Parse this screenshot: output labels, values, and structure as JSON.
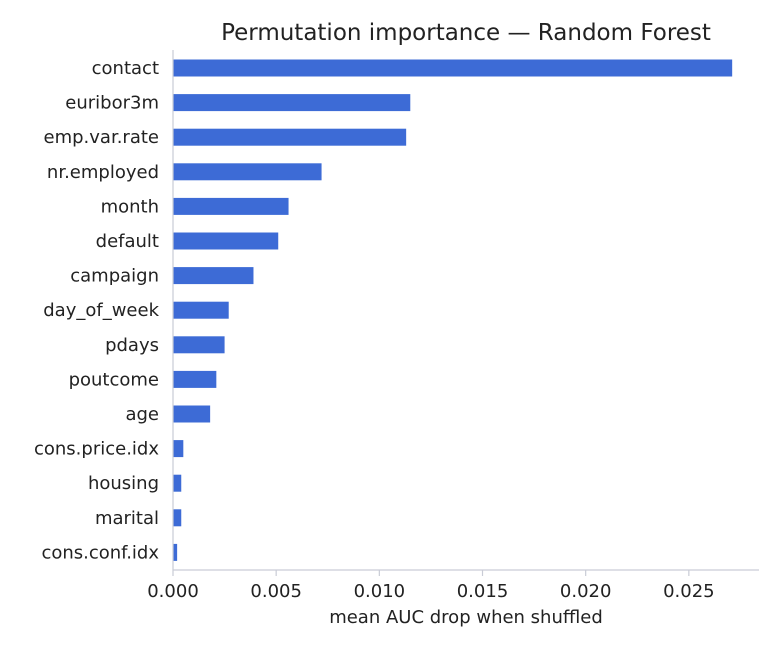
{
  "chart_data": {
    "type": "bar",
    "orientation": "horizontal",
    "title": "Permutation importance — Random Forest",
    "xlabel": "mean AUC drop when shuffled",
    "ylabel": "",
    "categories": [
      "contact",
      "euribor3m",
      "emp.var.rate",
      "nr.employed",
      "month",
      "default",
      "campaign",
      "day_of_week",
      "pdays",
      "poutcome",
      "age",
      "cons.price.idx",
      "housing",
      "marital",
      "cons.conf.idx"
    ],
    "values": [
      0.0271,
      0.0115,
      0.0113,
      0.0072,
      0.0056,
      0.0051,
      0.0039,
      0.0027,
      0.0025,
      0.0021,
      0.0018,
      0.0005,
      0.0004,
      0.0004,
      0.0002
    ],
    "xlim": [
      0,
      0.0284
    ],
    "xticks": [
      "0.000",
      "0.005",
      "0.010",
      "0.015",
      "0.020",
      "0.025"
    ],
    "grid": false,
    "bar_color": "#3d6bd6"
  }
}
